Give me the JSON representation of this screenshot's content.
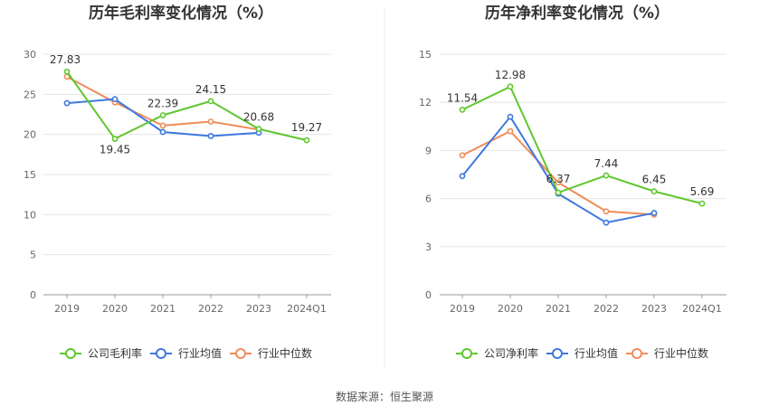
{
  "chart_data": [
    {
      "type": "line",
      "title": "历年毛利率变化情况（%）",
      "categories": [
        "2019",
        "2020",
        "2021",
        "2022",
        "2023",
        "2024Q1"
      ],
      "ylim": [
        0,
        30
      ],
      "yticks": [
        0,
        5,
        10,
        15,
        20,
        25,
        30
      ],
      "grid": true,
      "legend_position": "bottom",
      "series": [
        {
          "name": "公司毛利率",
          "color": "#5fc72f",
          "values": [
            27.83,
            19.45,
            22.39,
            24.15,
            20.68,
            19.27
          ],
          "labels": [
            "27.83",
            "19.45",
            "22.39",
            "24.15",
            "20.68",
            "19.27"
          ]
        },
        {
          "name": "行业均值",
          "color": "#3d78e0",
          "values": [
            23.9,
            24.4,
            20.3,
            19.8,
            20.2,
            null
          ]
        },
        {
          "name": "行业中位数",
          "color": "#f08c5a",
          "values": [
            27.2,
            24.0,
            21.1,
            21.6,
            20.6,
            null
          ]
        }
      ]
    },
    {
      "type": "line",
      "title": "历年净利率变化情况（%）",
      "categories": [
        "2019",
        "2020",
        "2021",
        "2022",
        "2023",
        "2024Q1"
      ],
      "ylim": [
        0,
        15
      ],
      "yticks": [
        0,
        3,
        6,
        9,
        12,
        15
      ],
      "grid": true,
      "legend_position": "bottom",
      "series": [
        {
          "name": "公司净利率",
          "color": "#5fc72f",
          "values": [
            11.54,
            12.98,
            6.37,
            7.44,
            6.45,
            5.69
          ],
          "labels": [
            "11.54",
            "12.98",
            "6.37",
            "7.44",
            "6.45",
            "5.69"
          ]
        },
        {
          "name": "行业均值",
          "color": "#3d78e0",
          "values": [
            7.4,
            11.1,
            6.3,
            4.5,
            5.1,
            null
          ]
        },
        {
          "name": "行业中位数",
          "color": "#f08c5a",
          "values": [
            8.7,
            10.2,
            7.0,
            5.2,
            5.0,
            null
          ]
        }
      ]
    }
  ],
  "footer": {
    "source": "数据来源：恒生聚源"
  }
}
